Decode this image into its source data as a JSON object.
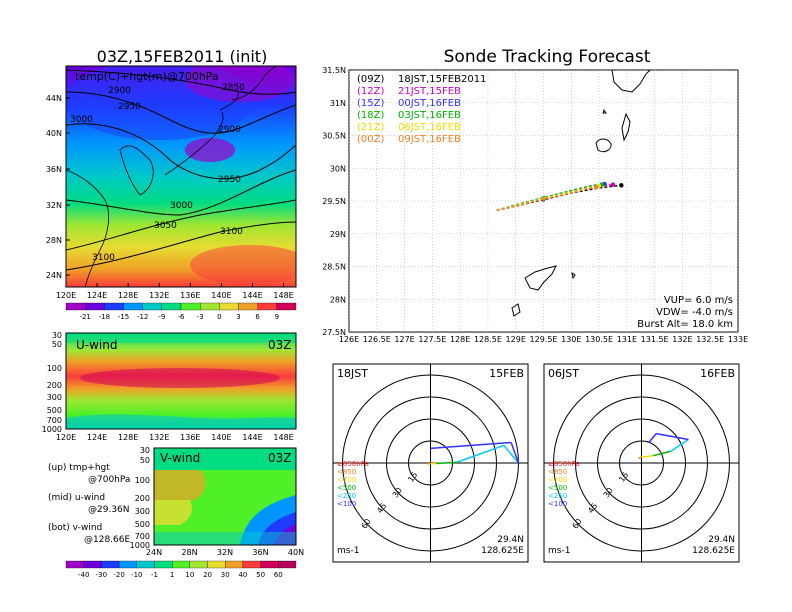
{
  "main_title": "03Z,15FEB2011 (init)",
  "forecast_title": "Sonde Tracking Forecast",
  "map_panel": {
    "label": "temp(C)+hgt(m)@700hPa",
    "lon_ticks": [
      "120E",
      "124E",
      "128E",
      "132E",
      "136E",
      "140E",
      "144E",
      "148E"
    ],
    "lat_ticks": [
      "44N",
      "40N",
      "36N",
      "32N",
      "28N",
      "24N"
    ],
    "contour_labels": [
      "2900",
      "2950",
      "3000",
      "3050",
      "3100",
      "2850"
    ],
    "colorbar_labels": [
      "-21",
      "-18",
      "-15",
      "-12",
      "-9",
      "-6",
      "-3",
      "0",
      "3",
      "6",
      "9"
    ],
    "colorbar_colors": [
      "#a000c8",
      "#6e00dc",
      "#1e3cff",
      "#0096ff",
      "#00c8c8",
      "#00dc82",
      "#50f028",
      "#a0e632",
      "#e6dc32",
      "#f0a028",
      "#fa3c3c",
      "#d2005a"
    ]
  },
  "uwind_panel": {
    "label": "U-wind",
    "time": "03Z",
    "p_ticks": [
      "30",
      "50",
      "100",
      "200",
      "300",
      "500",
      "700",
      "1000"
    ],
    "lon_ticks": [
      "120E",
      "124E",
      "128E",
      "132E",
      "136E",
      "140E",
      "144E",
      "148E"
    ]
  },
  "vwind_panel": {
    "label": "V-wind",
    "time": "03Z",
    "p_ticks": [
      "30",
      "50",
      "100",
      "200",
      "300",
      "500",
      "700",
      "1000"
    ],
    "lat_ticks": [
      "24N",
      "28N",
      "32N",
      "36N",
      "40N"
    ],
    "colorbar_labels": [
      "-40",
      "-30",
      "-20",
      "-10",
      "-1",
      "1",
      "10",
      "20",
      "30",
      "40",
      "50",
      "60"
    ],
    "colorbar_colors": [
      "#a000c8",
      "#6e00dc",
      "#1e3cff",
      "#0096ff",
      "#00c8c8",
      "#00dc82",
      "#50f028",
      "#a0e632",
      "#e6dc32",
      "#f0a028",
      "#fa3c3c",
      "#d2005a",
      "#b4005a"
    ]
  },
  "legend_notes": [
    {
      "line1": "(up) tmp+hgt",
      "line2": "@700hPa"
    },
    {
      "line1": "(mid) u-wind",
      "line2": "@29.36N"
    },
    {
      "line1": "(bot) v-wind",
      "line2": "@128.66E"
    }
  ],
  "track_panel": {
    "lon_ticks": [
      "126E",
      "126.5E",
      "127E",
      "127.5E",
      "128E",
      "128.5E",
      "129E",
      "129.5E",
      "130E",
      "130.5E",
      "131E",
      "131.5E",
      "132E",
      "132.5E",
      "133E"
    ],
    "lat_ticks": [
      "31.5N",
      "31N",
      "30.5N",
      "30N",
      "29.5N",
      "29N",
      "28.5N",
      "28N",
      "27.5N"
    ],
    "launches": [
      {
        "code": "(09Z)",
        "local": "18JST,15FEB2011",
        "color": "#000000"
      },
      {
        "code": "(12Z)",
        "local": "21JST,15FEB",
        "color": "#c800c8"
      },
      {
        "code": "(15Z)",
        "local": "00JST,16FEB",
        "color": "#3232ff"
      },
      {
        "code": "(18Z)",
        "local": "03JST,16FEB",
        "color": "#00b400"
      },
      {
        "code": "(21Z)",
        "local": "06JST,16FEB",
        "color": "#f0dc00"
      },
      {
        "code": "(00Z)",
        "local": "09JST,16FEB",
        "color": "#f08228"
      }
    ],
    "params": [
      "VUP= 6.0 m/s",
      "VDW= -4.0 m/s",
      "Burst Alt= 18.0 km"
    ]
  },
  "hodographs": [
    {
      "time": "18JST",
      "date": "15FEB",
      "lat": "29.4N",
      "lon": "128.625E",
      "unit": "ms-1"
    },
    {
      "time": "06JST",
      "date": "16FEB",
      "lat": "29.4N",
      "lon": "128.625E",
      "unit": "ms-1"
    }
  ],
  "hodo_levels": [
    {
      "label": "≥850hPa",
      "color": "#ff2020"
    },
    {
      "label": "<850",
      "color": "#f08228"
    },
    {
      "label": "<700",
      "color": "#f0dc00"
    },
    {
      "label": "<500",
      "color": "#00b400"
    },
    {
      "label": "<250",
      "color": "#00c8ff"
    },
    {
      "label": "<100",
      "color": "#3232ff"
    }
  ],
  "hodo_ring_labels": [
    "15",
    "30",
    "45",
    "60"
  ],
  "chart_data": {
    "type": "line",
    "title": "Sonde Tracking Forecast",
    "xlabel": "",
    "ylabel": "",
    "xlim": [
      126,
      133
    ],
    "ylim": [
      27.5,
      31.5
    ],
    "grid": true,
    "series": [
      {
        "name": "(09Z) 18JST,15FEB2011",
        "x": [
          128.66,
          129.0,
          129.5,
          130.0,
          130.5,
          130.9
        ],
        "y": [
          29.36,
          29.42,
          29.52,
          29.62,
          29.7,
          29.74
        ]
      },
      {
        "name": "(12Z) 21JST,15FEB",
        "x": [
          128.66,
          129.0,
          129.5,
          130.0,
          130.5,
          130.75
        ],
        "y": [
          29.36,
          29.43,
          29.54,
          29.65,
          29.73,
          29.75
        ]
      },
      {
        "name": "(15Z) 00JST,16FEB",
        "x": [
          128.66,
          129.0,
          129.5,
          130.0,
          130.4,
          130.6
        ],
        "y": [
          29.36,
          29.44,
          29.55,
          29.66,
          29.74,
          29.76
        ]
      },
      {
        "name": "(18Z) 03JST,16FEB",
        "x": [
          128.66,
          129.0,
          129.5,
          130.0,
          130.35,
          130.55
        ],
        "y": [
          29.36,
          29.44,
          29.55,
          29.66,
          29.73,
          29.75
        ]
      },
      {
        "name": "(21Z) 06JST,16FEB",
        "x": [
          128.66,
          129.0,
          129.5,
          130.0,
          130.35,
          130.5
        ],
        "y": [
          29.36,
          29.43,
          29.54,
          29.64,
          29.71,
          29.73
        ]
      },
      {
        "name": "(00Z) 09JST,16FEB",
        "x": [
          128.66,
          129.0,
          129.5,
          130.0,
          130.3,
          130.45
        ],
        "y": [
          29.36,
          29.42,
          29.53,
          29.62,
          29.69,
          29.71
        ]
      }
    ]
  }
}
